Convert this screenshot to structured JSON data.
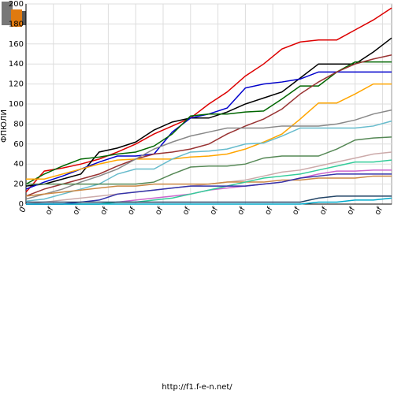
{
  "chart_data": {
    "type": "line",
    "y_label": "ФПЮЛИ",
    "footer": "http://f1.f-e-n.net/",
    "x": [
      0,
      1,
      2,
      3,
      4,
      5,
      6,
      7,
      8,
      9,
      10,
      11,
      12,
      13,
      14,
      15,
      16,
      17,
      18,
      19,
      20
    ],
    "xlim": [
      0,
      20
    ],
    "xticks": [
      {
        "value": 0,
        "label": "0"
      },
      {
        "value": 1.5,
        "label": "of"
      },
      {
        "value": 3,
        "label": "of"
      },
      {
        "value": 4.5,
        "label": "of"
      },
      {
        "value": 6,
        "label": "of"
      },
      {
        "value": 7.5,
        "label": "of"
      },
      {
        "value": 9,
        "label": "of"
      },
      {
        "value": 10.5,
        "label": "of"
      },
      {
        "value": 12,
        "label": "of"
      },
      {
        "value": 13.5,
        "label": "of"
      },
      {
        "value": 15,
        "label": "of"
      },
      {
        "value": 16.5,
        "label": "of"
      },
      {
        "value": 18,
        "label": "of"
      },
      {
        "value": 19.5,
        "label": "of"
      }
    ],
    "ylim": [
      0,
      200
    ],
    "yticks": [
      0,
      20,
      40,
      60,
      80,
      100,
      120,
      140,
      160,
      180,
      200
    ],
    "grid": true,
    "series": [
      {
        "color": "#dd0000",
        "values": [
          12,
          33,
          36,
          40,
          45,
          52,
          60,
          70,
          78,
          86,
          100,
          112,
          128,
          140,
          155,
          162,
          164,
          164,
          174,
          184,
          196
        ]
      },
      {
        "color": "#000000",
        "values": [
          18,
          20,
          25,
          30,
          52,
          56,
          62,
          74,
          82,
          86,
          86,
          92,
          100,
          106,
          112,
          126,
          140,
          140,
          140,
          152,
          166
        ]
      },
      {
        "color": "#0000cc",
        "values": [
          15,
          22,
          28,
          35,
          42,
          48,
          48,
          50,
          72,
          86,
          90,
          96,
          116,
          120,
          122,
          125,
          132,
          132,
          132,
          132,
          132
        ]
      },
      {
        "color": "#006600",
        "values": [
          20,
          30,
          38,
          45,
          47,
          50,
          52,
          58,
          70,
          88,
          90,
          90,
          92,
          93,
          105,
          118,
          118,
          132,
          142,
          142,
          142
        ]
      },
      {
        "color": "#993333",
        "values": [
          8,
          15,
          20,
          25,
          30,
          38,
          45,
          50,
          52,
          55,
          60,
          70,
          78,
          85,
          95,
          110,
          122,
          132,
          140,
          145,
          149
        ]
      },
      {
        "color": "#ffa500",
        "values": [
          25,
          25,
          30,
          35,
          40,
          44,
          45,
          45,
          45,
          47,
          48,
          50,
          55,
          62,
          70,
          85,
          101,
          101,
          110,
          120,
          120
        ]
      },
      {
        "color": "#888888",
        "values": [
          5,
          10,
          15,
          22,
          28,
          35,
          45,
          55,
          62,
          68,
          72,
          76,
          76,
          76,
          78,
          78,
          78,
          80,
          84,
          90,
          94
        ]
      },
      {
        "color": "#66bbcc",
        "values": [
          3,
          5,
          10,
          15,
          20,
          30,
          35,
          35,
          45,
          52,
          53,
          55,
          60,
          61,
          68,
          76,
          76,
          76,
          76,
          78,
          83
        ]
      },
      {
        "color": "#558855",
        "values": [
          20,
          20,
          20,
          20,
          20,
          20,
          20,
          22,
          30,
          37,
          38,
          38,
          40,
          46,
          48,
          48,
          48,
          55,
          64,
          66,
          67
        ]
      },
      {
        "color": "#ccaaaa",
        "values": [
          0,
          2,
          4,
          6,
          8,
          10,
          12,
          14,
          16,
          18,
          20,
          22,
          24,
          28,
          32,
          34,
          38,
          42,
          46,
          50,
          52
        ]
      },
      {
        "color": "#cc66cc",
        "values": [
          0,
          0,
          0,
          0,
          0,
          2,
          4,
          6,
          8,
          10,
          14,
          16,
          18,
          20,
          22,
          26,
          30,
          33,
          33,
          34,
          34
        ]
      },
      {
        "color": "#cc8844",
        "values": [
          8,
          10,
          12,
          14,
          16,
          18,
          18,
          20,
          20,
          20,
          20,
          22,
          22,
          22,
          24,
          24,
          26,
          26,
          26,
          28,
          28
        ]
      },
      {
        "color": "#33cc99",
        "values": [
          0,
          0,
          0,
          0,
          0,
          2,
          2,
          4,
          6,
          10,
          14,
          18,
          22,
          26,
          28,
          30,
          34,
          38,
          42,
          42,
          44
        ]
      },
      {
        "color": "#3333aa",
        "values": [
          0,
          0,
          0,
          2,
          4,
          10,
          12,
          14,
          16,
          18,
          18,
          18,
          18,
          20,
          22,
          26,
          28,
          30,
          30,
          30,
          30
        ]
      },
      {
        "color": "#224466",
        "values": [
          2,
          2,
          2,
          2,
          2,
          2,
          2,
          2,
          2,
          2,
          2,
          2,
          2,
          2,
          2,
          2,
          6,
          8,
          8,
          8,
          8
        ]
      },
      {
        "color": "#00aacc",
        "values": [
          0,
          0,
          0,
          0,
          0,
          0,
          0,
          0,
          0,
          0,
          0,
          0,
          0,
          0,
          0,
          0,
          2,
          2,
          4,
          4,
          6
        ]
      }
    ]
  }
}
